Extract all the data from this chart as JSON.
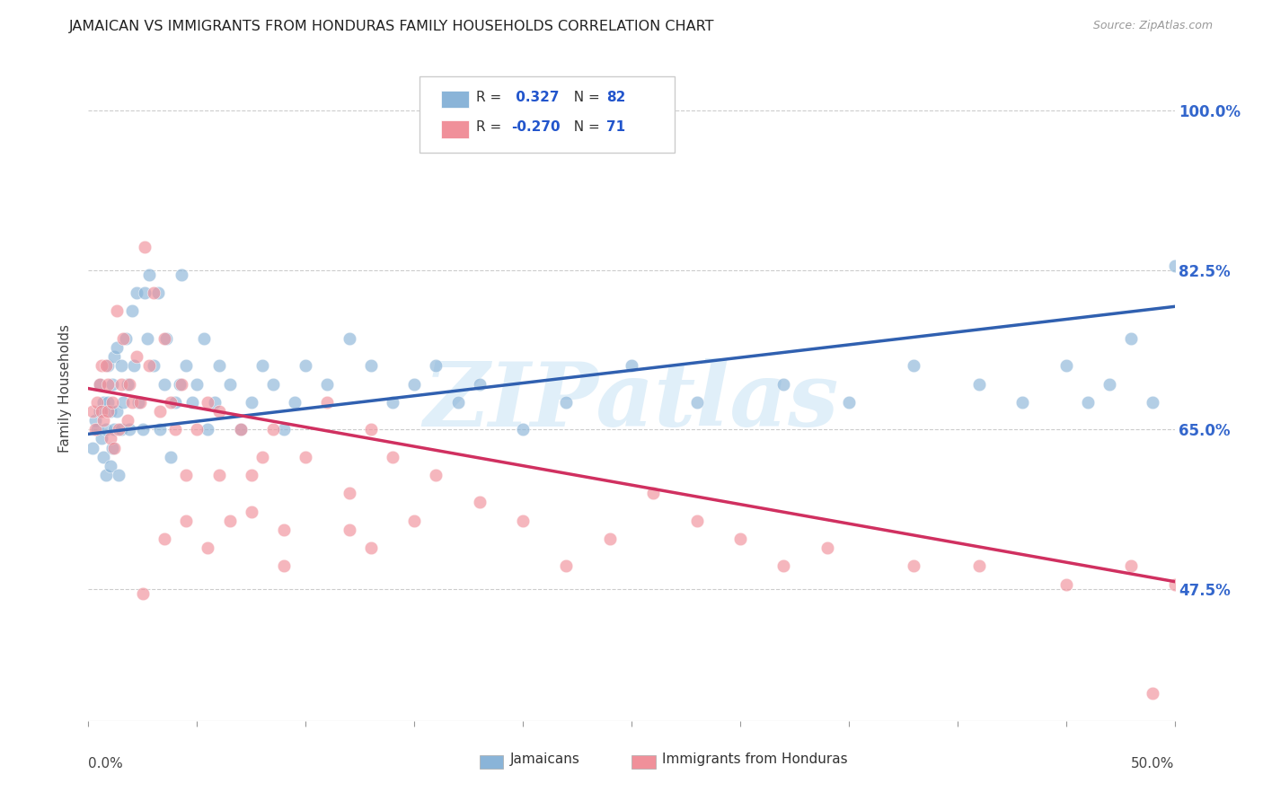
{
  "title": "JAMAICAN VS IMMIGRANTS FROM HONDURAS FAMILY HOUSEHOLDS CORRELATION CHART",
  "source": "Source: ZipAtlas.com",
  "ylabel": "Family Households",
  "ytick_labels": [
    "100.0%",
    "82.5%",
    "65.0%",
    "47.5%"
  ],
  "ytick_values": [
    1.0,
    0.825,
    0.65,
    0.475
  ],
  "xlim": [
    0.0,
    0.5
  ],
  "ylim": [
    0.33,
    1.06
  ],
  "jamaicans_color": "#8ab4d8",
  "honduras_color": "#f0909a",
  "trend_jamaicans_color": "#3060b0",
  "trend_honduras_color": "#d03060",
  "watermark": "ZIPatlas",
  "jamaicans_x": [
    0.002,
    0.003,
    0.004,
    0.005,
    0.005,
    0.006,
    0.007,
    0.007,
    0.008,
    0.008,
    0.009,
    0.009,
    0.01,
    0.01,
    0.011,
    0.011,
    0.012,
    0.012,
    0.013,
    0.013,
    0.014,
    0.015,
    0.015,
    0.016,
    0.017,
    0.018,
    0.019,
    0.02,
    0.021,
    0.022,
    0.023,
    0.025,
    0.026,
    0.027,
    0.028,
    0.03,
    0.032,
    0.033,
    0.035,
    0.036,
    0.038,
    0.04,
    0.042,
    0.043,
    0.045,
    0.048,
    0.05,
    0.053,
    0.055,
    0.058,
    0.06,
    0.065,
    0.07,
    0.075,
    0.08,
    0.085,
    0.09,
    0.095,
    0.1,
    0.11,
    0.12,
    0.13,
    0.14,
    0.15,
    0.16,
    0.17,
    0.18,
    0.2,
    0.22,
    0.25,
    0.28,
    0.32,
    0.35,
    0.38,
    0.41,
    0.43,
    0.45,
    0.46,
    0.47,
    0.48,
    0.49,
    0.5
  ],
  "jamaicans_y": [
    0.63,
    0.66,
    0.65,
    0.67,
    0.7,
    0.64,
    0.62,
    0.68,
    0.6,
    0.65,
    0.68,
    0.72,
    0.61,
    0.67,
    0.63,
    0.7,
    0.65,
    0.73,
    0.67,
    0.74,
    0.6,
    0.65,
    0.72,
    0.68,
    0.75,
    0.7,
    0.65,
    0.78,
    0.72,
    0.8,
    0.68,
    0.65,
    0.8,
    0.75,
    0.82,
    0.72,
    0.8,
    0.65,
    0.7,
    0.75,
    0.62,
    0.68,
    0.7,
    0.82,
    0.72,
    0.68,
    0.7,
    0.75,
    0.65,
    0.68,
    0.72,
    0.7,
    0.65,
    0.68,
    0.72,
    0.7,
    0.65,
    0.68,
    0.72,
    0.7,
    0.75,
    0.72,
    0.68,
    0.7,
    0.72,
    0.68,
    0.7,
    0.65,
    0.68,
    0.72,
    0.68,
    0.7,
    0.68,
    0.72,
    0.7,
    0.68,
    0.72,
    0.68,
    0.7,
    0.75,
    0.68,
    0.83
  ],
  "honduras_x": [
    0.002,
    0.003,
    0.004,
    0.005,
    0.006,
    0.006,
    0.007,
    0.008,
    0.009,
    0.009,
    0.01,
    0.011,
    0.012,
    0.013,
    0.014,
    0.015,
    0.016,
    0.018,
    0.019,
    0.02,
    0.022,
    0.024,
    0.026,
    0.028,
    0.03,
    0.033,
    0.035,
    0.038,
    0.04,
    0.043,
    0.045,
    0.05,
    0.055,
    0.06,
    0.065,
    0.07,
    0.075,
    0.08,
    0.085,
    0.09,
    0.1,
    0.11,
    0.12,
    0.13,
    0.14,
    0.15,
    0.16,
    0.18,
    0.2,
    0.22,
    0.24,
    0.26,
    0.28,
    0.3,
    0.32,
    0.34,
    0.38,
    0.41,
    0.45,
    0.48,
    0.49,
    0.5,
    0.12,
    0.13,
    0.045,
    0.055,
    0.06,
    0.075,
    0.09,
    0.035,
    0.025
  ],
  "honduras_y": [
    0.67,
    0.65,
    0.68,
    0.7,
    0.67,
    0.72,
    0.66,
    0.72,
    0.67,
    0.7,
    0.64,
    0.68,
    0.63,
    0.78,
    0.65,
    0.7,
    0.75,
    0.66,
    0.7,
    0.68,
    0.73,
    0.68,
    0.85,
    0.72,
    0.8,
    0.67,
    0.75,
    0.68,
    0.65,
    0.7,
    0.6,
    0.65,
    0.68,
    0.67,
    0.55,
    0.65,
    0.6,
    0.62,
    0.65,
    0.5,
    0.62,
    0.68,
    0.58,
    0.65,
    0.62,
    0.55,
    0.6,
    0.57,
    0.55,
    0.5,
    0.53,
    0.58,
    0.55,
    0.53,
    0.5,
    0.52,
    0.5,
    0.5,
    0.48,
    0.5,
    0.36,
    0.48,
    0.54,
    0.52,
    0.55,
    0.52,
    0.6,
    0.56,
    0.54,
    0.53,
    0.47
  ],
  "trend_jam_x0": 0.0,
  "trend_jam_x1": 0.5,
  "trend_jam_y0": 0.645,
  "trend_jam_y1": 0.785,
  "trend_hon_x0": 0.0,
  "trend_hon_x1": 0.5,
  "trend_hon_y0": 0.695,
  "trend_hon_y1": 0.483
}
